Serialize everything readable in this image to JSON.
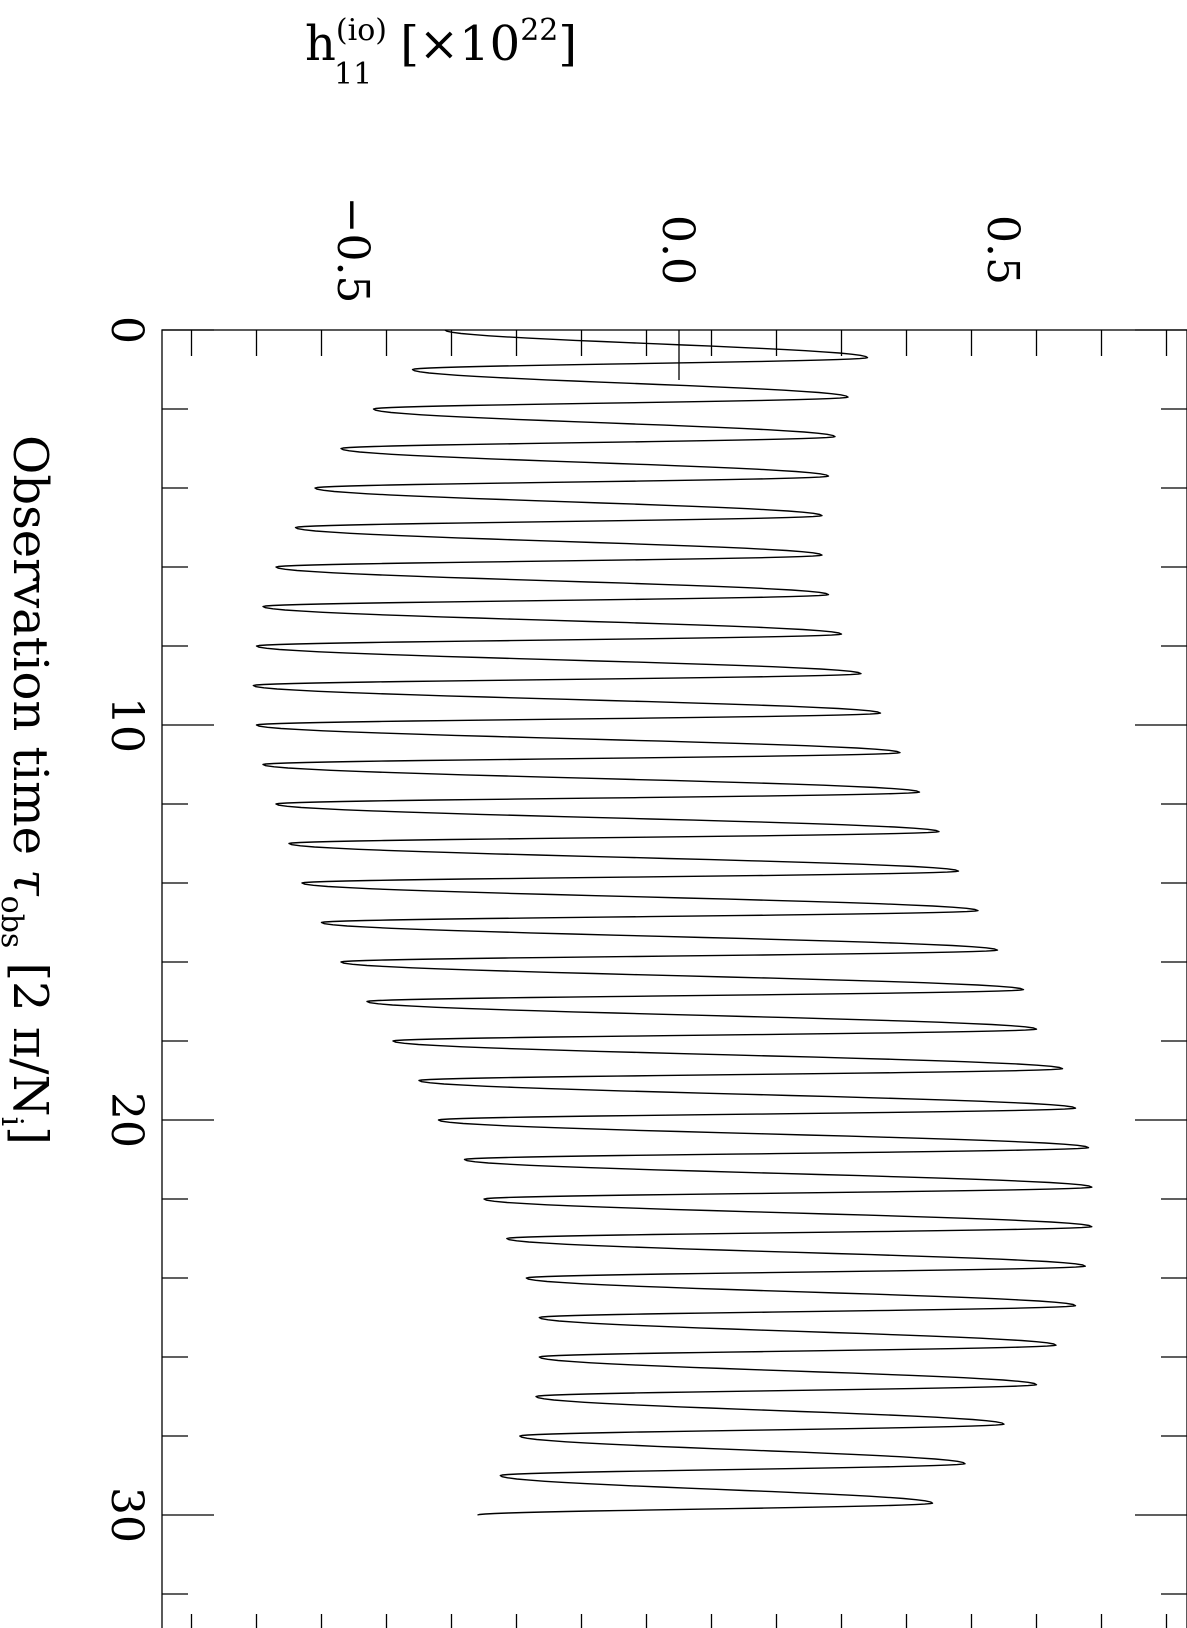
{
  "chart_data": {
    "type": "line",
    "orientation": "rotated-90-clockwise",
    "xlabel": "Observation time",
    "xlabel_symbol": "τ",
    "xlabel_symbol_sub": "obs",
    "xlabel_units": "[2 π/N",
    "xlabel_units_sub": "i",
    "xlabel_units_close": "]",
    "ylabel_base": "h",
    "ylabel_sup": "(io)",
    "ylabel_sub": "11",
    "ylabel_scale": "[×10",
    "ylabel_scale_sup": "22",
    "ylabel_scale_close": "]",
    "xlim": [
      0,
      32.5
    ],
    "ylim": [
      -0.78,
      0.78
    ],
    "x_ticks": [
      "0",
      "10",
      "20",
      "30"
    ],
    "y_ticks": [
      "−0.5",
      "0.0",
      "0.5"
    ],
    "x_tick_values": [
      0,
      10,
      20,
      30
    ],
    "y_tick_values": [
      -0.5,
      0.0,
      0.5
    ],
    "grid": false,
    "series": [
      {
        "x": [
          0.0,
          0.7,
          1.0,
          1.7,
          2.0,
          2.7,
          3.0,
          3.7,
          4.0,
          4.7,
          5.0,
          5.7,
          6.0,
          6.7,
          7.0,
          7.7,
          8.0,
          8.7,
          9.0,
          9.7,
          10.0,
          10.7,
          11.0,
          11.7,
          12.0,
          12.7,
          13.0,
          13.7,
          14.0,
          14.7,
          15.0,
          15.7,
          16.0,
          16.7,
          17.0,
          17.7,
          18.0,
          18.7,
          19.0,
          19.7,
          20.0,
          20.7,
          21.0,
          21.7,
          22.0,
          22.7,
          23.0,
          23.7,
          24.0,
          24.7,
          25.0,
          25.7,
          26.0,
          26.7,
          27.0,
          27.7,
          28.0,
          28.7,
          29.0,
          29.7,
          30.0
        ],
        "y": [
          -0.36,
          0.29,
          -0.41,
          0.26,
          -0.47,
          0.24,
          -0.52,
          0.23,
          -0.56,
          0.22,
          -0.59,
          0.22,
          -0.62,
          0.23,
          -0.64,
          0.25,
          -0.65,
          0.28,
          -0.655,
          0.31,
          -0.65,
          0.34,
          -0.64,
          0.37,
          -0.62,
          0.4,
          -0.6,
          0.43,
          -0.58,
          0.46,
          -0.55,
          0.49,
          -0.52,
          0.53,
          -0.48,
          0.55,
          -0.44,
          0.59,
          -0.4,
          0.61,
          -0.37,
          0.63,
          -0.33,
          0.635,
          -0.3,
          0.635,
          -0.265,
          0.625,
          -0.235,
          0.61,
          -0.215,
          0.58,
          -0.215,
          0.55,
          -0.22,
          0.5,
          -0.245,
          0.44,
          -0.275,
          0.39,
          -0.31
        ]
      }
    ]
  }
}
